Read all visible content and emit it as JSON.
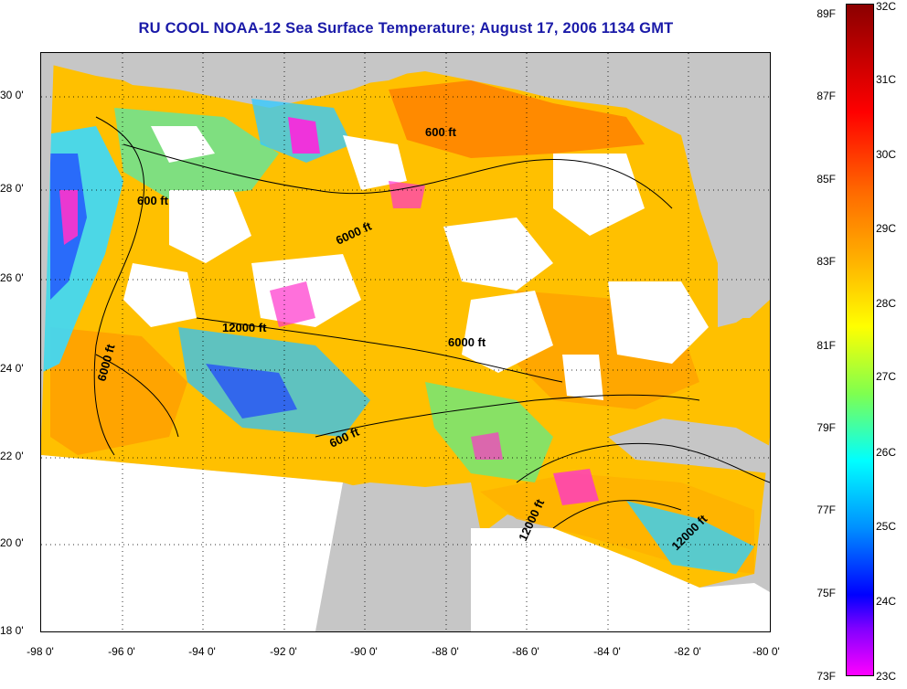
{
  "title": "RU COOL  NOAA-12  Sea Surface Temperature;  August 17, 2006 1134 GMT",
  "map": {
    "latitude_labels": [
      "30 0'",
      "28 0'",
      "26 0'",
      "24 0'",
      "22 0'",
      "20 0'",
      "18 0'"
    ],
    "longitude_labels": [
      "-98 0'",
      "-96 0'",
      "-94 0'",
      "-92 0'",
      "-90 0'",
      "-88 0'",
      "-86 0'",
      "-84 0'",
      "-82 0'",
      "-80 0'"
    ],
    "contour_labels": [
      "600 ft",
      "600 ft",
      "6000 ft",
      "12000 ft",
      "6000 ft",
      "6000 ft",
      "600 ft",
      "12000 ft",
      "12000 ft"
    ],
    "land_color": "#c6c6c6",
    "cloud_color": "#ffffff"
  },
  "colorbar": {
    "fahrenheit_labels": [
      "89F",
      "87F",
      "85F",
      "83F",
      "81F",
      "79F",
      "77F",
      "75F",
      "73F"
    ],
    "celsius_labels": [
      "32C",
      "31C",
      "30C",
      "29C",
      "28C",
      "27C",
      "26C",
      "25C",
      "24C",
      "23C"
    ]
  }
}
